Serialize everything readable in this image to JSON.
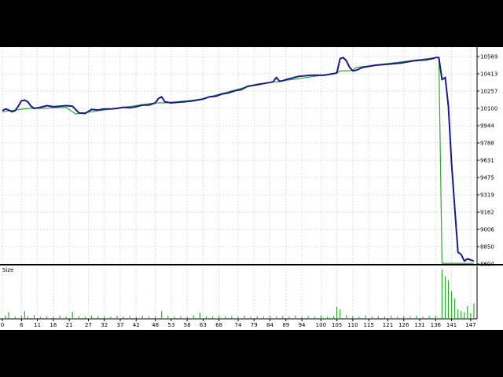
{
  "chart_data": [
    {
      "type": "line",
      "title": "",
      "y_ticks": [
        10569,
        10413,
        10257,
        10100,
        9944,
        9788,
        9631,
        9475,
        9319,
        9162,
        9006,
        8850,
        8694
      ],
      "ylim": [
        8694,
        10569
      ],
      "xlim": [
        0,
        149
      ],
      "grid": true,
      "series": [
        {
          "role": "balance",
          "color": "#1a1a8c",
          "x": [
            0,
            1,
            2,
            3,
            4,
            5,
            6,
            7,
            8,
            9,
            10,
            11,
            12,
            14,
            16,
            18,
            20,
            22,
            24,
            26,
            28,
            30,
            32,
            34,
            36,
            38,
            40,
            42,
            44,
            46,
            48,
            49,
            50,
            51,
            53,
            55,
            57,
            59,
            61,
            63,
            65,
            67,
            69,
            71,
            73,
            75,
            77,
            79,
            81,
            83,
            85,
            86,
            87,
            88,
            89,
            91,
            93,
            95,
            97,
            99,
            101,
            103,
            105,
            106,
            107,
            108,
            109,
            110,
            111,
            113,
            115,
            117,
            119,
            121,
            123,
            125,
            127,
            129,
            131,
            133,
            135,
            136,
            137,
            138,
            139,
            140,
            141,
            142,
            143,
            144,
            145,
            146,
            147,
            148
          ],
          "values": [
            10080,
            10095,
            10085,
            10070,
            10080,
            10120,
            10170,
            10175,
            10160,
            10120,
            10100,
            10105,
            10110,
            10125,
            10115,
            10120,
            10125,
            10120,
            10060,
            10055,
            10090,
            10085,
            10095,
            10095,
            10100,
            10110,
            10105,
            10115,
            10130,
            10130,
            10150,
            10190,
            10205,
            10160,
            10150,
            10155,
            10160,
            10165,
            10175,
            10185,
            10205,
            10210,
            10230,
            10240,
            10260,
            10270,
            10300,
            10310,
            10320,
            10330,
            10340,
            10380,
            10345,
            10350,
            10360,
            10375,
            10390,
            10395,
            10400,
            10400,
            10400,
            10410,
            10420,
            10550,
            10560,
            10530,
            10470,
            10440,
            10445,
            10470,
            10480,
            10490,
            10495,
            10500,
            10505,
            10510,
            10520,
            10530,
            10535,
            10540,
            10550,
            10560,
            10560,
            10360,
            10380,
            10120,
            9600,
            9200,
            8800,
            8780,
            8720,
            8740,
            8730,
            8720
          ]
        },
        {
          "role": "equity",
          "color": "#2eaa2e",
          "x": [
            0,
            8,
            12,
            20,
            23,
            48,
            51,
            60,
            62,
            63,
            80,
            85,
            86,
            105,
            106,
            108,
            110,
            111,
            136,
            137,
            138,
            148
          ],
          "values": [
            10070,
            10100,
            10100,
            10110,
            10050,
            10150,
            10150,
            10175,
            10180,
            10190,
            10320,
            10340,
            10340,
            10420,
            10440,
            10440,
            10445,
            10470,
            10560,
            10560,
            8700,
            8700
          ]
        }
      ]
    },
    {
      "type": "bar",
      "panel_label": "Size",
      "x_ticks": [
        "0",
        "6",
        "11",
        "16",
        "21",
        "27",
        "32",
        "37",
        "42",
        "48",
        "53",
        "58",
        "63",
        "68",
        "74",
        "79",
        "84",
        "89",
        "94",
        "100",
        "105",
        "110",
        "115",
        "121",
        "126",
        "131",
        "136",
        "141",
        "147"
      ],
      "xlim": [
        0,
        149
      ],
      "ylim": [
        0,
        1
      ],
      "color": "#2eaa2e",
      "x": [
        1,
        2,
        4,
        6,
        7,
        8,
        10,
        12,
        14,
        16,
        18,
        20,
        22,
        24,
        26,
        28,
        30,
        32,
        34,
        36,
        38,
        40,
        42,
        44,
        46,
        48,
        50,
        52,
        54,
        56,
        58,
        60,
        62,
        64,
        66,
        68,
        70,
        72,
        74,
        76,
        78,
        80,
        82,
        84,
        86,
        88,
        90,
        92,
        94,
        96,
        98,
        100,
        102,
        104,
        105,
        106,
        108,
        110,
        112,
        114,
        116,
        118,
        120,
        122,
        124,
        126,
        128,
        130,
        132,
        134,
        136,
        138,
        139,
        140,
        141,
        142,
        143,
        144,
        145,
        146,
        147,
        148
      ],
      "values": [
        0.05,
        0.12,
        0.03,
        0.05,
        0.14,
        0.04,
        0.06,
        0.03,
        0.04,
        0.03,
        0.05,
        0.03,
        0.13,
        0.04,
        0.03,
        0.05,
        0.03,
        0.04,
        0.03,
        0.05,
        0.03,
        0.04,
        0.03,
        0.05,
        0.03,
        0.04,
        0.14,
        0.05,
        0.03,
        0.04,
        0.03,
        0.05,
        0.11,
        0.04,
        0.03,
        0.05,
        0.03,
        0.04,
        0.03,
        0.05,
        0.03,
        0.04,
        0.03,
        0.05,
        0.03,
        0.04,
        0.03,
        0.05,
        0.03,
        0.04,
        0.03,
        0.05,
        0.03,
        0.04,
        0.23,
        0.18,
        0.06,
        0.04,
        0.03,
        0.05,
        0.03,
        0.04,
        0.03,
        0.05,
        0.03,
        0.04,
        0.03,
        0.05,
        0.03,
        0.04,
        0.05,
        1.0,
        0.86,
        0.78,
        0.55,
        0.4,
        0.18,
        0.15,
        0.12,
        0.25,
        0.1,
        0.3
      ]
    }
  ]
}
